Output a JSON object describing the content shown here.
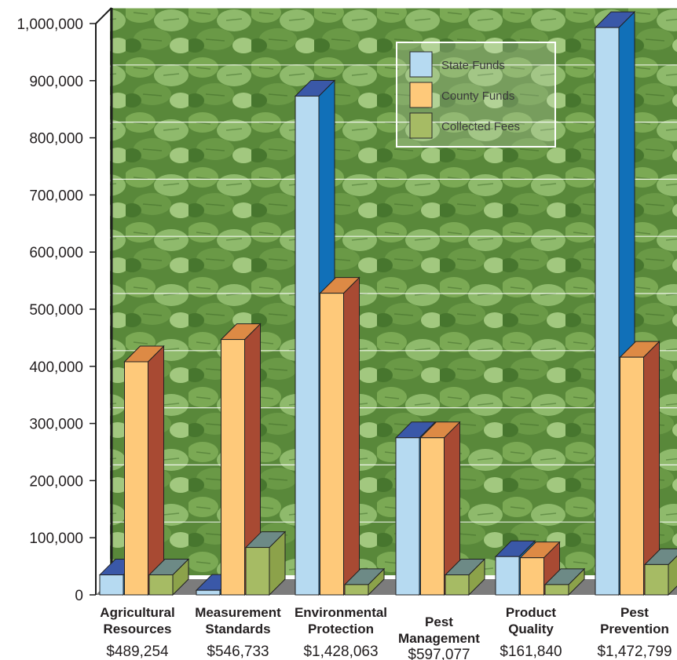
{
  "chart_data": {
    "type": "bar",
    "categories": [
      [
        "Agricultural",
        "Resources"
      ],
      [
        "Measurement",
        "Standards"
      ],
      [
        "Environmental",
        "Protection"
      ],
      [
        "Pest",
        "Management"
      ],
      [
        "Product",
        "Quality"
      ],
      [
        "Pest",
        "Prevention"
      ]
    ],
    "totals": [
      "$489,254",
      "$546,733",
      "$1,428,063",
      "$597,077",
      "$161,840",
      "$1,472,799"
    ],
    "series": [
      {
        "name": "State Funds",
        "values": [
          35000,
          8000,
          873000,
          275000,
          67000,
          993000
        ]
      },
      {
        "name": "County Funds",
        "values": [
          408000,
          447000,
          528000,
          275000,
          65000,
          416000
        ]
      },
      {
        "name": "Collected Fees",
        "values": [
          35000,
          83000,
          18000,
          35000,
          18000,
          53000
        ]
      }
    ],
    "yticks": [
      "0",
      "100,000",
      "200,000",
      "300,000",
      "400,000",
      "500,000",
      "600,000",
      "700,000",
      "800,000",
      "900,000",
      "1,000,000"
    ],
    "ylim": [
      0,
      1000000
    ],
    "legend_position": "top-right",
    "colors": {
      "State Funds": {
        "front": "#b6daf1",
        "side": "#1170b8",
        "top": "#3a58a8"
      },
      "County Funds": {
        "front": "#fec97a",
        "side": "#a84a33",
        "top": "#dd8a45"
      },
      "Collected Fees": {
        "front": "#a6bb64",
        "side": "#8ca24a",
        "top": "#6d8a86"
      }
    },
    "grid": true,
    "background": "photo of green leafy crop field"
  }
}
